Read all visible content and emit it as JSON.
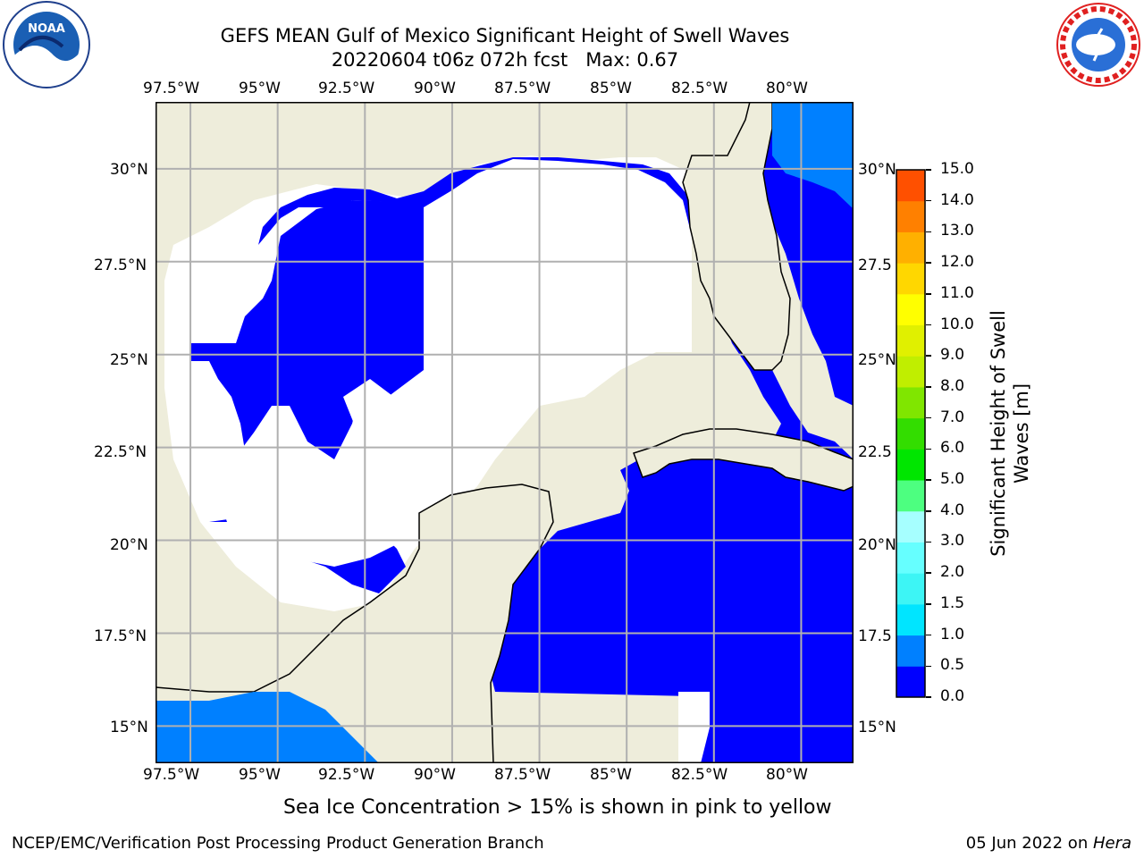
{
  "header": {
    "title_line1": "GEFS MEAN Gulf of Mexico Significant Height of Swell Waves",
    "title_line2": "20220604 t06z 072h fcst   Max: 0.67"
  },
  "logos": {
    "left": "noaa-logo",
    "left_text": "NOAA",
    "right": "national-weather-service-logo",
    "right_text": "NATIONAL WEATHER SERVICE"
  },
  "map": {
    "lon_range": [
      -98.5,
      -78.5
    ],
    "lat_range": [
      14,
      31.8
    ],
    "lon_ticks": [
      "97.5°W",
      "95°W",
      "92.5°W",
      "90°W",
      "87.5°W",
      "85°W",
      "82.5°W",
      "80°W"
    ],
    "lat_ticks": [
      "15°N",
      "17.5°N",
      "20°N",
      "22.5°N",
      "25°N",
      "27.5°N",
      "30°N"
    ],
    "lat_ticks_right": [
      "15°N",
      "17.5",
      "20°N",
      "22.5",
      "25°N",
      "27.5",
      "30°N"
    ],
    "gridlines": true,
    "land_color": "#eeeddb",
    "water_color": "#0000ff",
    "no_data_color": "#ffffff",
    "swell_0_5_to_1_color": "#0080ff"
  },
  "colorbar": {
    "label": "Significant Height of Swell Waves [m]",
    "label_line1": "Significant Height of Swell",
    "label_line2": "Waves [m]",
    "ticks": [
      "0.0",
      "0.5",
      "1.0",
      "1.5",
      "2.0",
      "3.0",
      "4.0",
      "5.0",
      "6.0",
      "7.0",
      "8.0",
      "9.0",
      "10.0",
      "11.0",
      "12.0",
      "13.0",
      "14.0",
      "15.0"
    ],
    "colors": [
      "#0000ff",
      "#0080ff",
      "#00e5ff",
      "#3df5f5",
      "#66ffff",
      "#a6ffff",
      "#4dff80",
      "#00e600",
      "#33dd00",
      "#80e600",
      "#c0ee00",
      "#e0f000",
      "#ffff00",
      "#ffd700",
      "#ffb000",
      "#ff8000",
      "#ff5000",
      "#ff2000",
      "#ff0000"
    ]
  },
  "notes": {
    "ice_note": "Sea Ice Concentration > 15% is shown in pink to yellow",
    "footer_left": "NCEP/EMC/Verification Post Processing Product Generation Branch",
    "footer_right_prefix": "05 Jun 2022 on ",
    "footer_right_machine": "Hera"
  }
}
